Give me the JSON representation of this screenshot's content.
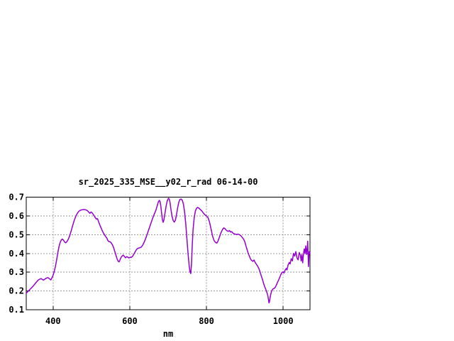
{
  "page": {
    "background": "#ffffff"
  },
  "chart_data": {
    "type": "line",
    "title": "sr_2025_335_MSE__y02_r_rad 06-14-00",
    "xlabel": "nm",
    "ylabel": "",
    "xlim": [
      330,
      1070
    ],
    "ylim": [
      0.1,
      0.7
    ],
    "xticks": [
      400,
      600,
      800,
      1000
    ],
    "yticks": [
      0.1,
      0.2,
      0.3,
      0.4,
      0.5,
      0.6,
      0.7
    ],
    "grid": true,
    "legend_position": "none",
    "line_color": "#9400d3",
    "grid_color": "#999999",
    "axis_color": "#000000",
    "series": [
      {
        "name": "sr_2025_335_MSE__y02_r_rad",
        "points": [
          [
            330,
            0.188
          ],
          [
            336,
            0.201
          ],
          [
            342,
            0.213
          ],
          [
            348,
            0.226
          ],
          [
            354,
            0.241
          ],
          [
            360,
            0.256
          ],
          [
            365,
            0.263
          ],
          [
            369,
            0.266
          ],
          [
            372,
            0.261
          ],
          [
            375,
            0.258
          ],
          [
            379,
            0.264
          ],
          [
            383,
            0.269
          ],
          [
            387,
            0.271
          ],
          [
            391,
            0.264
          ],
          [
            394,
            0.259
          ],
          [
            397,
            0.27
          ],
          [
            400,
            0.284
          ],
          [
            403,
            0.304
          ],
          [
            406,
            0.33
          ],
          [
            409,
            0.362
          ],
          [
            412,
            0.4
          ],
          [
            415,
            0.432
          ],
          [
            418,
            0.456
          ],
          [
            421,
            0.47
          ],
          [
            424,
            0.477
          ],
          [
            427,
            0.471
          ],
          [
            430,
            0.461
          ],
          [
            433,
            0.457
          ],
          [
            436,
            0.463
          ],
          [
            439,
            0.473
          ],
          [
            443,
            0.492
          ],
          [
            447,
            0.519
          ],
          [
            451,
            0.548
          ],
          [
            455,
            0.575
          ],
          [
            459,
            0.597
          ],
          [
            463,
            0.613
          ],
          [
            467,
            0.624
          ],
          [
            471,
            0.63
          ],
          [
            476,
            0.633
          ],
          [
            481,
            0.634
          ],
          [
            486,
            0.632
          ],
          [
            490,
            0.627
          ],
          [
            493,
            0.62
          ],
          [
            496,
            0.614
          ],
          [
            499,
            0.621
          ],
          [
            502,
            0.616
          ],
          [
            505,
            0.607
          ],
          [
            509,
            0.594
          ],
          [
            513,
            0.583
          ],
          [
            516,
            0.585
          ],
          [
            519,
            0.567
          ],
          [
            522,
            0.551
          ],
          [
            525,
            0.537
          ],
          [
            528,
            0.522
          ],
          [
            531,
            0.51
          ],
          [
            534,
            0.5
          ],
          [
            537,
            0.49
          ],
          [
            540,
            0.483
          ],
          [
            543,
            0.468
          ],
          [
            546,
            0.463
          ],
          [
            549,
            0.462
          ],
          [
            552,
            0.455
          ],
          [
            555,
            0.445
          ],
          [
            558,
            0.43
          ],
          [
            561,
            0.41
          ],
          [
            564,
            0.39
          ],
          [
            567,
            0.37
          ],
          [
            570,
            0.358
          ],
          [
            572,
            0.355
          ],
          [
            574,
            0.363
          ],
          [
            577,
            0.378
          ],
          [
            580,
            0.386
          ],
          [
            583,
            0.391
          ],
          [
            586,
            0.384
          ],
          [
            589,
            0.377
          ],
          [
            592,
            0.383
          ],
          [
            595,
            0.38
          ],
          [
            598,
            0.376
          ],
          [
            601,
            0.38
          ],
          [
            604,
            0.379
          ],
          [
            607,
            0.384
          ],
          [
            610,
            0.394
          ],
          [
            613,
            0.405
          ],
          [
            616,
            0.416
          ],
          [
            619,
            0.424
          ],
          [
            622,
            0.428
          ],
          [
            626,
            0.43
          ],
          [
            630,
            0.434
          ],
          [
            634,
            0.445
          ],
          [
            638,
            0.462
          ],
          [
            642,
            0.483
          ],
          [
            646,
            0.506
          ],
          [
            650,
            0.53
          ],
          [
            654,
            0.554
          ],
          [
            658,
            0.578
          ],
          [
            662,
            0.6
          ],
          [
            665,
            0.615
          ],
          [
            668,
            0.63
          ],
          [
            671,
            0.65
          ],
          [
            674,
            0.672
          ],
          [
            677,
            0.683
          ],
          [
            679,
            0.677
          ],
          [
            681,
            0.652
          ],
          [
            683,
            0.615
          ],
          [
            685,
            0.58
          ],
          [
            687,
            0.566
          ],
          [
            689,
            0.578
          ],
          [
            692,
            0.617
          ],
          [
            695,
            0.655
          ],
          [
            698,
            0.682
          ],
          [
            701,
            0.694
          ],
          [
            703,
            0.69
          ],
          [
            705,
            0.671
          ],
          [
            707,
            0.64
          ],
          [
            710,
            0.601
          ],
          [
            713,
            0.576
          ],
          [
            716,
            0.567
          ],
          [
            719,
            0.577
          ],
          [
            722,
            0.608
          ],
          [
            725,
            0.645
          ],
          [
            728,
            0.674
          ],
          [
            731,
            0.688
          ],
          [
            734,
            0.69
          ],
          [
            737,
            0.683
          ],
          [
            740,
            0.662
          ],
          [
            743,
            0.62
          ],
          [
            746,
            0.558
          ],
          [
            749,
            0.478
          ],
          [
            752,
            0.398
          ],
          [
            755,
            0.333
          ],
          [
            757,
            0.302
          ],
          [
            759,
            0.293
          ],
          [
            761,
            0.345
          ],
          [
            763,
            0.445
          ],
          [
            765,
            0.525
          ],
          [
            768,
            0.59
          ],
          [
            771,
            0.625
          ],
          [
            774,
            0.641
          ],
          [
            777,
            0.645
          ],
          [
            780,
            0.642
          ],
          [
            784,
            0.634
          ],
          [
            788,
            0.626
          ],
          [
            792,
            0.615
          ],
          [
            796,
            0.606
          ],
          [
            800,
            0.6
          ],
          [
            804,
            0.591
          ],
          [
            808,
            0.567
          ],
          [
            812,
            0.53
          ],
          [
            816,
            0.492
          ],
          [
            820,
            0.468
          ],
          [
            824,
            0.458
          ],
          [
            827,
            0.455
          ],
          [
            830,
            0.466
          ],
          [
            834,
            0.488
          ],
          [
            838,
            0.511
          ],
          [
            842,
            0.528
          ],
          [
            845,
            0.536
          ],
          [
            848,
            0.533
          ],
          [
            851,
            0.525
          ],
          [
            854,
            0.52
          ],
          [
            857,
            0.518
          ],
          [
            860,
            0.522
          ],
          [
            863,
            0.514
          ],
          [
            866,
            0.516
          ],
          [
            869,
            0.508
          ],
          [
            872,
            0.505
          ],
          [
            875,
            0.503
          ],
          [
            878,
            0.501
          ],
          [
            882,
            0.503
          ],
          [
            886,
            0.5
          ],
          [
            890,
            0.494
          ],
          [
            893,
            0.486
          ],
          [
            897,
            0.476
          ],
          [
            900,
            0.462
          ],
          [
            903,
            0.44
          ],
          [
            906,
            0.42
          ],
          [
            909,
            0.4
          ],
          [
            912,
            0.385
          ],
          [
            915,
            0.37
          ],
          [
            918,
            0.362
          ],
          [
            921,
            0.358
          ],
          [
            924,
            0.365
          ],
          [
            927,
            0.352
          ],
          [
            931,
            0.34
          ],
          [
            934,
            0.33
          ],
          [
            937,
            0.318
          ],
          [
            940,
            0.3
          ],
          [
            943,
            0.28
          ],
          [
            946,
            0.262
          ],
          [
            949,
            0.24
          ],
          [
            952,
            0.222
          ],
          [
            955,
            0.207
          ],
          [
            958,
            0.19
          ],
          [
            960,
            0.175
          ],
          [
            962,
            0.15
          ],
          [
            963,
            0.137
          ],
          [
            964,
            0.14
          ],
          [
            966,
            0.165
          ],
          [
            968,
            0.185
          ],
          [
            970,
            0.2
          ],
          [
            973,
            0.21
          ],
          [
            976,
            0.213
          ],
          [
            979,
            0.218
          ],
          [
            982,
            0.23
          ],
          [
            985,
            0.245
          ],
          [
            988,
            0.258
          ],
          [
            991,
            0.272
          ],
          [
            994,
            0.288
          ],
          [
            997,
            0.298
          ],
          [
            1000,
            0.302
          ],
          [
            1002,
            0.296
          ],
          [
            1005,
            0.31
          ],
          [
            1008,
            0.32
          ],
          [
            1010,
            0.312
          ],
          [
            1013,
            0.34
          ],
          [
            1016,
            0.352
          ],
          [
            1018,
            0.344
          ],
          [
            1021,
            0.372
          ],
          [
            1024,
            0.36
          ],
          [
            1027,
            0.4
          ],
          [
            1030,
            0.386
          ],
          [
            1033,
            0.41
          ],
          [
            1036,
            0.376
          ],
          [
            1039,
            0.366
          ],
          [
            1042,
            0.405
          ],
          [
            1045,
            0.39
          ],
          [
            1047,
            0.36
          ],
          [
            1049,
            0.394
          ],
          [
            1051,
            0.35
          ],
          [
            1053,
            0.396
          ],
          [
            1055,
            0.424
          ],
          [
            1057,
            0.4
          ],
          [
            1059,
            0.44
          ],
          [
            1061,
            0.395
          ],
          [
            1063,
            0.43
          ],
          [
            1064,
            0.465
          ],
          [
            1066,
            0.33
          ],
          [
            1068,
            0.41
          ],
          [
            1070,
            0.4
          ]
        ]
      }
    ]
  }
}
